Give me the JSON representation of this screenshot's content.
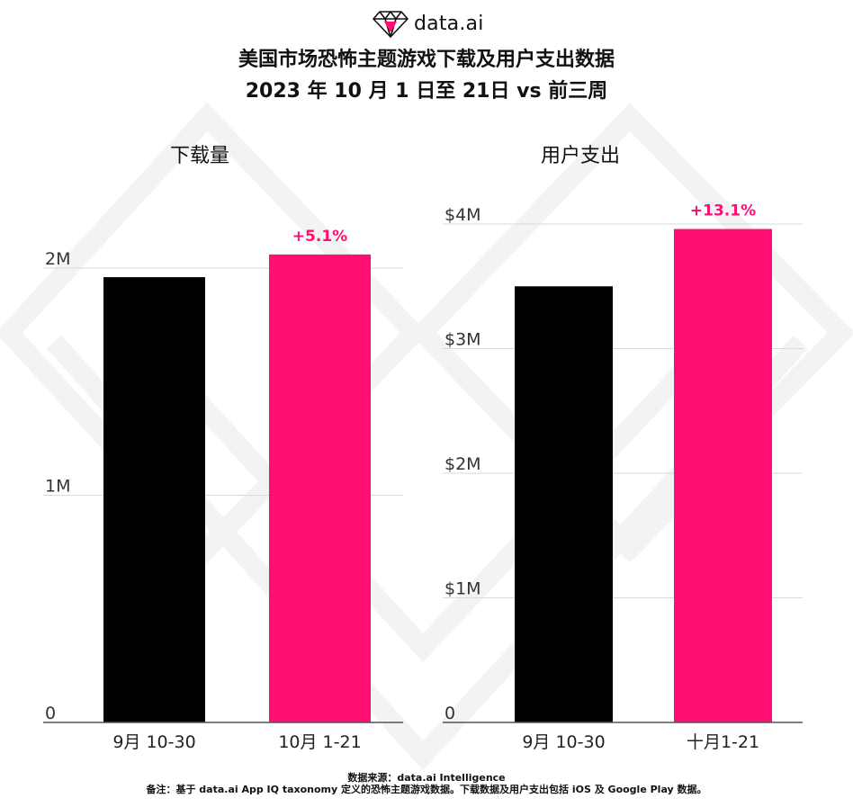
{
  "brand": {
    "logo_text": "data.ai"
  },
  "title": {
    "line1": "美国市场恐怖主题游戏下载及用户支出数据",
    "line2": "2023 年 10 月 1 日至 21日 vs 前三周"
  },
  "colors": {
    "prior": "#000000",
    "current": "#ff0f73",
    "grid": "#d9d9d9",
    "axis": "#555555"
  },
  "chart_data": [
    {
      "type": "bar",
      "title": "下载量",
      "categories": [
        "9月 10-30",
        "10月 1-21"
      ],
      "values": [
        1.96,
        2.06
      ],
      "unit": "M",
      "ylim": [
        0,
        2
      ],
      "yticks": [
        0,
        1,
        2
      ],
      "ytick_labels": [
        "0",
        "1M",
        "2M"
      ],
      "change_label": "+5.1%",
      "grid": true
    },
    {
      "type": "bar",
      "title": "用户支出",
      "categories": [
        "9月 10-30",
        "十月1-21"
      ],
      "values": [
        3.5,
        3.96
      ],
      "unit": "$M",
      "ylim": [
        0,
        4
      ],
      "yticks": [
        0,
        1,
        2,
        3,
        4
      ],
      "ytick_labels": [
        "0",
        "$1M",
        "$2M",
        "$3M",
        "$4M"
      ],
      "change_label": "+13.1%",
      "grid": true
    }
  ],
  "footer": {
    "source": "数据来源：data.ai Intelligence",
    "note": "备注：基于 data.ai App IQ taxonomy 定义的恐怖主题游戏数据。下载数据及用户支出包括 iOS 及 Google Play 数据。"
  }
}
